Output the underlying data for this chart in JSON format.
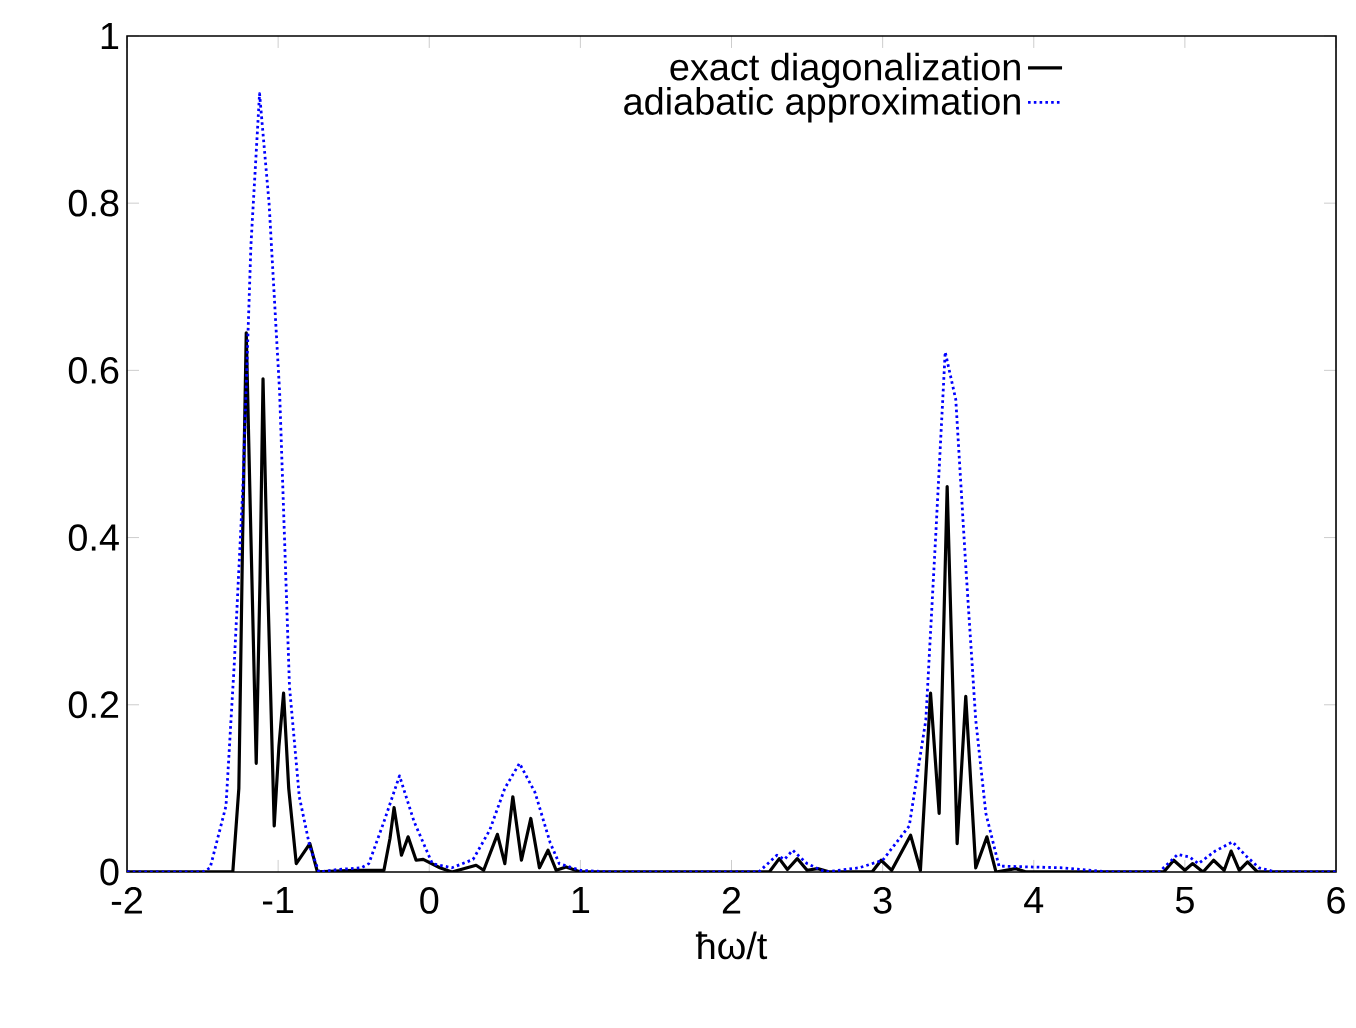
{
  "chart_data": {
    "type": "line",
    "xlabel": "ħω/t",
    "xlim": [
      -2,
      6
    ],
    "ylim": [
      0,
      1
    ],
    "xticks": [
      -2,
      -1,
      0,
      1,
      2,
      3,
      4,
      5,
      6
    ],
    "yticks": [
      0,
      {
        "value": 0.2,
        "label": "0.2"
      },
      {
        "value": 0.4,
        "label": "0.4"
      },
      {
        "value": 0.6,
        "label": "0.6"
      },
      {
        "value": 0.8,
        "label": "0.8"
      },
      1
    ],
    "grid": false,
    "legend": "top right",
    "marker": "none",
    "series": [
      {
        "name": "exact diagonalization",
        "color": "#000000",
        "line_style": "solid",
        "x": [
          -2,
          -1.3,
          -1.26,
          -1.235,
          -1.211,
          -1.18,
          -1.145,
          -1.12,
          -1.1,
          -1.07,
          -1.026,
          -0.995,
          -0.964,
          -0.93,
          -0.88,
          -0.79,
          -0.74,
          -0.5,
          -0.3,
          -0.26,
          -0.233,
          -0.184,
          -0.14,
          -0.087,
          -0.04,
          0.07,
          0.15,
          0.31,
          0.36,
          0.451,
          0.5,
          0.553,
          0.61,
          0.672,
          0.729,
          0.786,
          0.84,
          0.905,
          1,
          2.25,
          2.316,
          2.37,
          2.435,
          2.5,
          2.57,
          2.65,
          2.93,
          2.99,
          3.06,
          3.185,
          3.25,
          3.317,
          3.374,
          3.427,
          3.493,
          3.55,
          3.616,
          3.69,
          3.75,
          3.88,
          3.95,
          4.86,
          4.926,
          5.0,
          5.05,
          5.12,
          5.19,
          5.26,
          5.306,
          5.36,
          5.415,
          5.48,
          6
        ],
        "values": [
          0,
          0,
          0.1,
          0.4,
          0.645,
          0.4,
          0.13,
          0.35,
          0.59,
          0.35,
          0.055,
          0.15,
          0.214,
          0.1,
          0.01,
          0.034,
          0,
          0.002,
          0.002,
          0.04,
          0.077,
          0.02,
          0.042,
          0.014,
          0.015,
          0.005,
          0,
          0.008,
          0.002,
          0.045,
          0.01,
          0.09,
          0.014,
          0.064,
          0.005,
          0.026,
          0.002,
          0.006,
          0,
          0,
          0.016,
          0.003,
          0.016,
          0.002,
          0.004,
          0,
          0,
          0.014,
          0.002,
          0.044,
          0.002,
          0.214,
          0.07,
          0.461,
          0.034,
          0.21,
          0.005,
          0.042,
          0,
          0.004,
          0,
          0,
          0.014,
          0.002,
          0.01,
          0,
          0.014,
          0.002,
          0.025,
          0.002,
          0.012,
          0,
          0
        ]
      },
      {
        "name": "adiabatic approximation",
        "color": "#0000ff",
        "line_style": "dotted",
        "x": [
          -2,
          -1.5,
          -1.45,
          -1.345,
          -1.29,
          -1.233,
          -1.18,
          -1.123,
          -1.06,
          -0.99,
          -0.925,
          -0.86,
          -0.79,
          -0.73,
          -0.6,
          -0.45,
          -0.4,
          -0.3,
          -0.197,
          -0.1,
          0.02,
          0.15,
          0.29,
          0.4,
          0.5,
          0.597,
          0.7,
          0.8,
          0.86,
          1.0,
          1.2,
          2.18,
          2.3,
          2.35,
          2.405,
          2.5,
          2.62,
          2.845,
          3.0,
          3.176,
          3.286,
          3.352,
          3.414,
          3.484,
          3.55,
          3.616,
          3.683,
          3.77,
          4.19,
          4.5,
          4.83,
          4.952,
          5.03,
          5.09,
          5.2,
          5.315,
          5.4,
          5.49,
          5.6,
          6
        ],
        "values": [
          0,
          0,
          0.005,
          0.079,
          0.25,
          0.462,
          0.75,
          0.931,
          0.8,
          0.573,
          0.222,
          0.09,
          0.03,
          0,
          0.003,
          0.005,
          0.01,
          0.06,
          0.115,
          0.06,
          0.01,
          0.005,
          0.015,
          0.05,
          0.1,
          0.13,
          0.095,
          0.035,
          0.01,
          0.002,
          0,
          0,
          0.02,
          0.015,
          0.026,
          0.01,
          0,
          0.005,
          0.014,
          0.055,
          0.182,
          0.405,
          0.622,
          0.565,
          0.366,
          0.182,
          0.07,
          0.007,
          0.005,
          0,
          0,
          0.021,
          0.018,
          0.01,
          0.025,
          0.036,
          0.02,
          0.005,
          0,
          0
        ]
      }
    ]
  }
}
